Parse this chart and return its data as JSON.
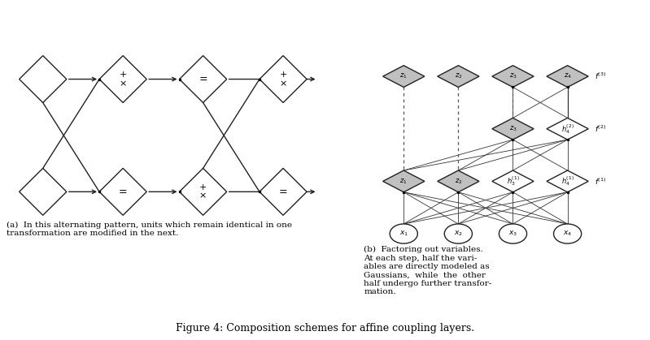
{
  "fig_width": 7.99,
  "fig_height": 4.19,
  "bg_color": "#ffffff",
  "caption": "Figure 4: Composition schemes for affine coupling layers.",
  "sub_caption_a": "(a)  In this alternating pattern, units which remain identical in one\ntransformation are modified in the next.",
  "sub_caption_b": "(b)  Factoring out variables.\nAt each step, half the vari-\nables are directly modeled as\nGaussians,  while  the  other\nhalf undergo further transfor-\nmation.",
  "diamond_color_white": "#ffffff",
  "diamond_color_gray": "#c0c0c0",
  "diamond_stroke": "#222222",
  "line_color": "#222222"
}
